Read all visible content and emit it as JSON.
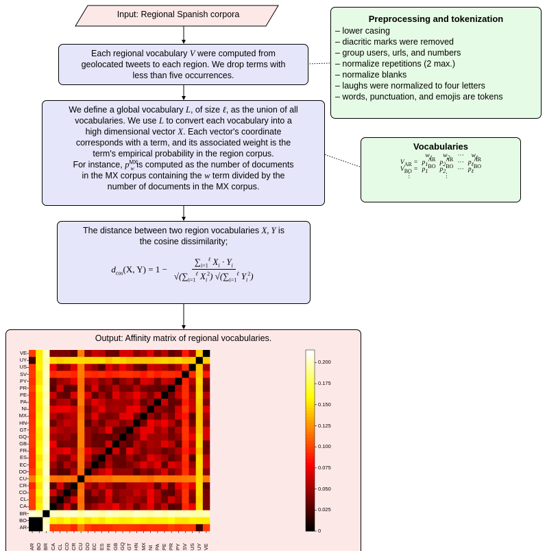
{
  "input": {
    "text": "Input: Regional Spanish corpora"
  },
  "step1": {
    "line1_pre": "Each regional vocabulary ",
    "line1_var": "V",
    "line1_post": " were computed from",
    "line2": "geolocated tweets to each region. We drop terms with",
    "line3": "less than five occurrences."
  },
  "preprocessing": {
    "title": "Preprocessing and tokenization",
    "items": [
      "– lower casing",
      "– diacritic marks were removed",
      "– group users, urls, and numbers",
      "– normalize repetitions (2 max.)",
      "– normalize blanks",
      "– laughs were normalized to four letters",
      "– words, punctuation, and emojis are tokens"
    ]
  },
  "step2": {
    "l1a": "We define a global vocabulary ",
    "l1b": "L",
    "l1c": ", of size ",
    "l1d": "ℓ",
    "l1e": ", as the union of all",
    "l2a": "vocabularies. We use ",
    "l2b": "L",
    "l2c": " to convert each vocabulary into a",
    "l3a": "high dimensional vector ",
    "l3b": "X",
    "l3c": ". Each vector's coordinate",
    "l4": "corresponds with a term, and its associated weight is the",
    "l5": "term's empirical probability in the region corpus.",
    "l6a": "For instance, ",
    "l6b": "p",
    "l6sub": "w",
    "l6sup": "MX",
    "l6c": " is computed as the number of documents",
    "l7a": "in the MX corpus containing the ",
    "l7b": "w",
    "l7c": " term divided by the",
    "l8": "number of documents in the MX corpus."
  },
  "vocabularies": {
    "title": "Vocabularies",
    "header": [
      "w1",
      "w2",
      "···",
      "wℓ"
    ],
    "row_ar": "V_AR = p1^AR  p2^AR ··· pℓ^AR",
    "row_bo": "V_BO = p1^BO  p2^BO ··· pℓ^BO",
    "vdots": "⋮"
  },
  "step3": {
    "l1a": "The distance between two region vocabularies ",
    "l1b": "X, Y",
    "l1c": " is",
    "l2": "the cosine dissimilarity;",
    "lhs": "d",
    "lhs_sub": "cos",
    "lhs_args": "(X, Y) = 1 −",
    "numerator": "∑ X_i · Y_i",
    "denominator": "√∑ X_i² √∑ Y_i²"
  },
  "output": {
    "title": "Output: Affinity matrix of regional vocabularies."
  },
  "chart_data": {
    "type": "heatmap",
    "title": "Output: Affinity matrix of regional vocabularies.",
    "labels": [
      "AR",
      "BO",
      "BR",
      "CA",
      "CL",
      "CO",
      "CR",
      "CU",
      "DO",
      "EC",
      "ES",
      "FR",
      "GB",
      "GQ",
      "GT",
      "HN",
      "MX",
      "NI",
      "PA",
      "PE",
      "PR",
      "PY",
      "SV",
      "US",
      "UY",
      "VE"
    ],
    "colorbar_ticks": [
      "0",
      "0.025",
      "0.050",
      "0.075",
      "0.100",
      "0.125",
      "0.150",
      "0.175",
      "0.200"
    ],
    "vmin": 0,
    "vmax": 0.215,
    "colormap": "hot",
    "base_value": 0.055,
    "diagonal_value": 0,
    "row_col_values": {
      "BR": 0.205,
      "BO": 0.16,
      "UY": 0.15,
      "CU": 0.12,
      "AR": 0.1,
      "SV": 0.095
    },
    "pair_values": [
      [
        "BO",
        "BR",
        0.2
      ],
      [
        "AR",
        "UY",
        0.02
      ],
      [
        "BO",
        "AR",
        0.0
      ]
    ]
  }
}
